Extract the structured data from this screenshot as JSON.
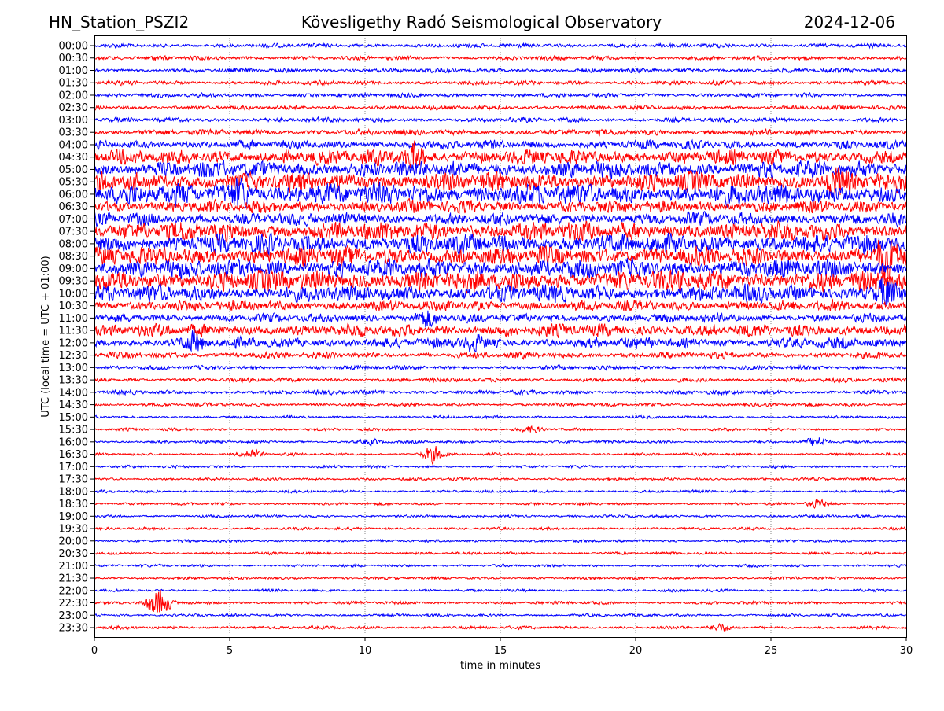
{
  "chart_data": {
    "type": "line",
    "title_left": "HN_Station_PSZI2",
    "title_center": "Kövesligethy Radó Seismological Observatory",
    "title_right": "2024-12-06",
    "xlabel": "time in minutes",
    "ylabel": "UTC (local time = UTC + 01:00)",
    "xlim": [
      0,
      30
    ],
    "xticks": [
      "0",
      "5",
      "10",
      "15",
      "20",
      "25",
      "30"
    ],
    "grid": "vertical dotted",
    "colors": [
      "#0000ff",
      "#ff0000"
    ],
    "traces": [
      {
        "label": "00:00",
        "amp": 2
      },
      {
        "label": "00:30",
        "amp": 2
      },
      {
        "label": "01:00",
        "amp": 2
      },
      {
        "label": "01:30",
        "amp": 2
      },
      {
        "label": "02:00",
        "amp": 2
      },
      {
        "label": "02:30",
        "amp": 2
      },
      {
        "label": "03:00",
        "amp": 2.2
      },
      {
        "label": "03:30",
        "amp": 2.8
      },
      {
        "label": "04:00",
        "amp": 4
      },
      {
        "label": "04:30",
        "amp": 7,
        "events": [
          {
            "t": 11.8,
            "amp": 12
          }
        ]
      },
      {
        "label": "05:00",
        "amp": 8
      },
      {
        "label": "05:30",
        "amp": 9,
        "events": [
          {
            "t": 27.4,
            "amp": 12
          }
        ]
      },
      {
        "label": "06:00",
        "amp": 10,
        "events": [
          {
            "t": 5.4,
            "amp": 14
          }
        ]
      },
      {
        "label": "06:30",
        "amp": 6
      },
      {
        "label": "07:00",
        "amp": 6
      },
      {
        "label": "07:30",
        "amp": 9
      },
      {
        "label": "08:00",
        "amp": 9
      },
      {
        "label": "08:30",
        "amp": 9,
        "events": [
          {
            "t": 29.2,
            "amp": 18
          }
        ]
      },
      {
        "label": "09:00",
        "amp": 9
      },
      {
        "label": "09:30",
        "amp": 10
      },
      {
        "label": "10:00",
        "amp": 8,
        "events": [
          {
            "t": 29.2,
            "amp": 14
          }
        ]
      },
      {
        "label": "10:30",
        "amp": 5
      },
      {
        "label": "11:00",
        "amp": 4,
        "events": [
          {
            "t": 12.3,
            "amp": 9
          }
        ]
      },
      {
        "label": "11:30",
        "amp": 6
      },
      {
        "label": "12:00",
        "amp": 5,
        "events": [
          {
            "t": 3.7,
            "amp": 9
          },
          {
            "t": 14.0,
            "amp": 7
          }
        ]
      },
      {
        "label": "12:30",
        "amp": 3
      },
      {
        "label": "13:00",
        "amp": 2
      },
      {
        "label": "13:30",
        "amp": 2
      },
      {
        "label": "14:00",
        "amp": 2
      },
      {
        "label": "14:30",
        "amp": 1.6
      },
      {
        "label": "15:00",
        "amp": 1.3
      },
      {
        "label": "15:30",
        "amp": 1.3,
        "events": [
          {
            "t": 16.2,
            "amp": 3
          }
        ]
      },
      {
        "label": "16:00",
        "amp": 1.3,
        "events": [
          {
            "t": 10.2,
            "amp": 3
          },
          {
            "t": 26.7,
            "amp": 5
          }
        ]
      },
      {
        "label": "16:30",
        "amp": 1.3,
        "events": [
          {
            "t": 5.8,
            "amp": 5
          },
          {
            "t": 12.5,
            "amp": 9
          }
        ]
      },
      {
        "label": "17:00",
        "amp": 1.3
      },
      {
        "label": "17:30",
        "amp": 1.3
      },
      {
        "label": "18:00",
        "amp": 1.3
      },
      {
        "label": "18:30",
        "amp": 1.3,
        "events": [
          {
            "t": 26.7,
            "amp": 4
          }
        ]
      },
      {
        "label": "19:00",
        "amp": 1.3
      },
      {
        "label": "19:30",
        "amp": 1.3
      },
      {
        "label": "20:00",
        "amp": 1.3
      },
      {
        "label": "20:30",
        "amp": 1.3
      },
      {
        "label": "21:00",
        "amp": 1.3
      },
      {
        "label": "21:30",
        "amp": 1.3
      },
      {
        "label": "22:00",
        "amp": 1.3
      },
      {
        "label": "22:30",
        "amp": 1.5,
        "events": [
          {
            "t": 2.2,
            "amp": 8
          },
          {
            "t": 2.5,
            "amp": 9
          }
        ]
      },
      {
        "label": "23:00",
        "amp": 1.3
      },
      {
        "label": "23:30",
        "amp": 1.5,
        "events": [
          {
            "t": 23.2,
            "amp": 3
          }
        ]
      }
    ]
  }
}
